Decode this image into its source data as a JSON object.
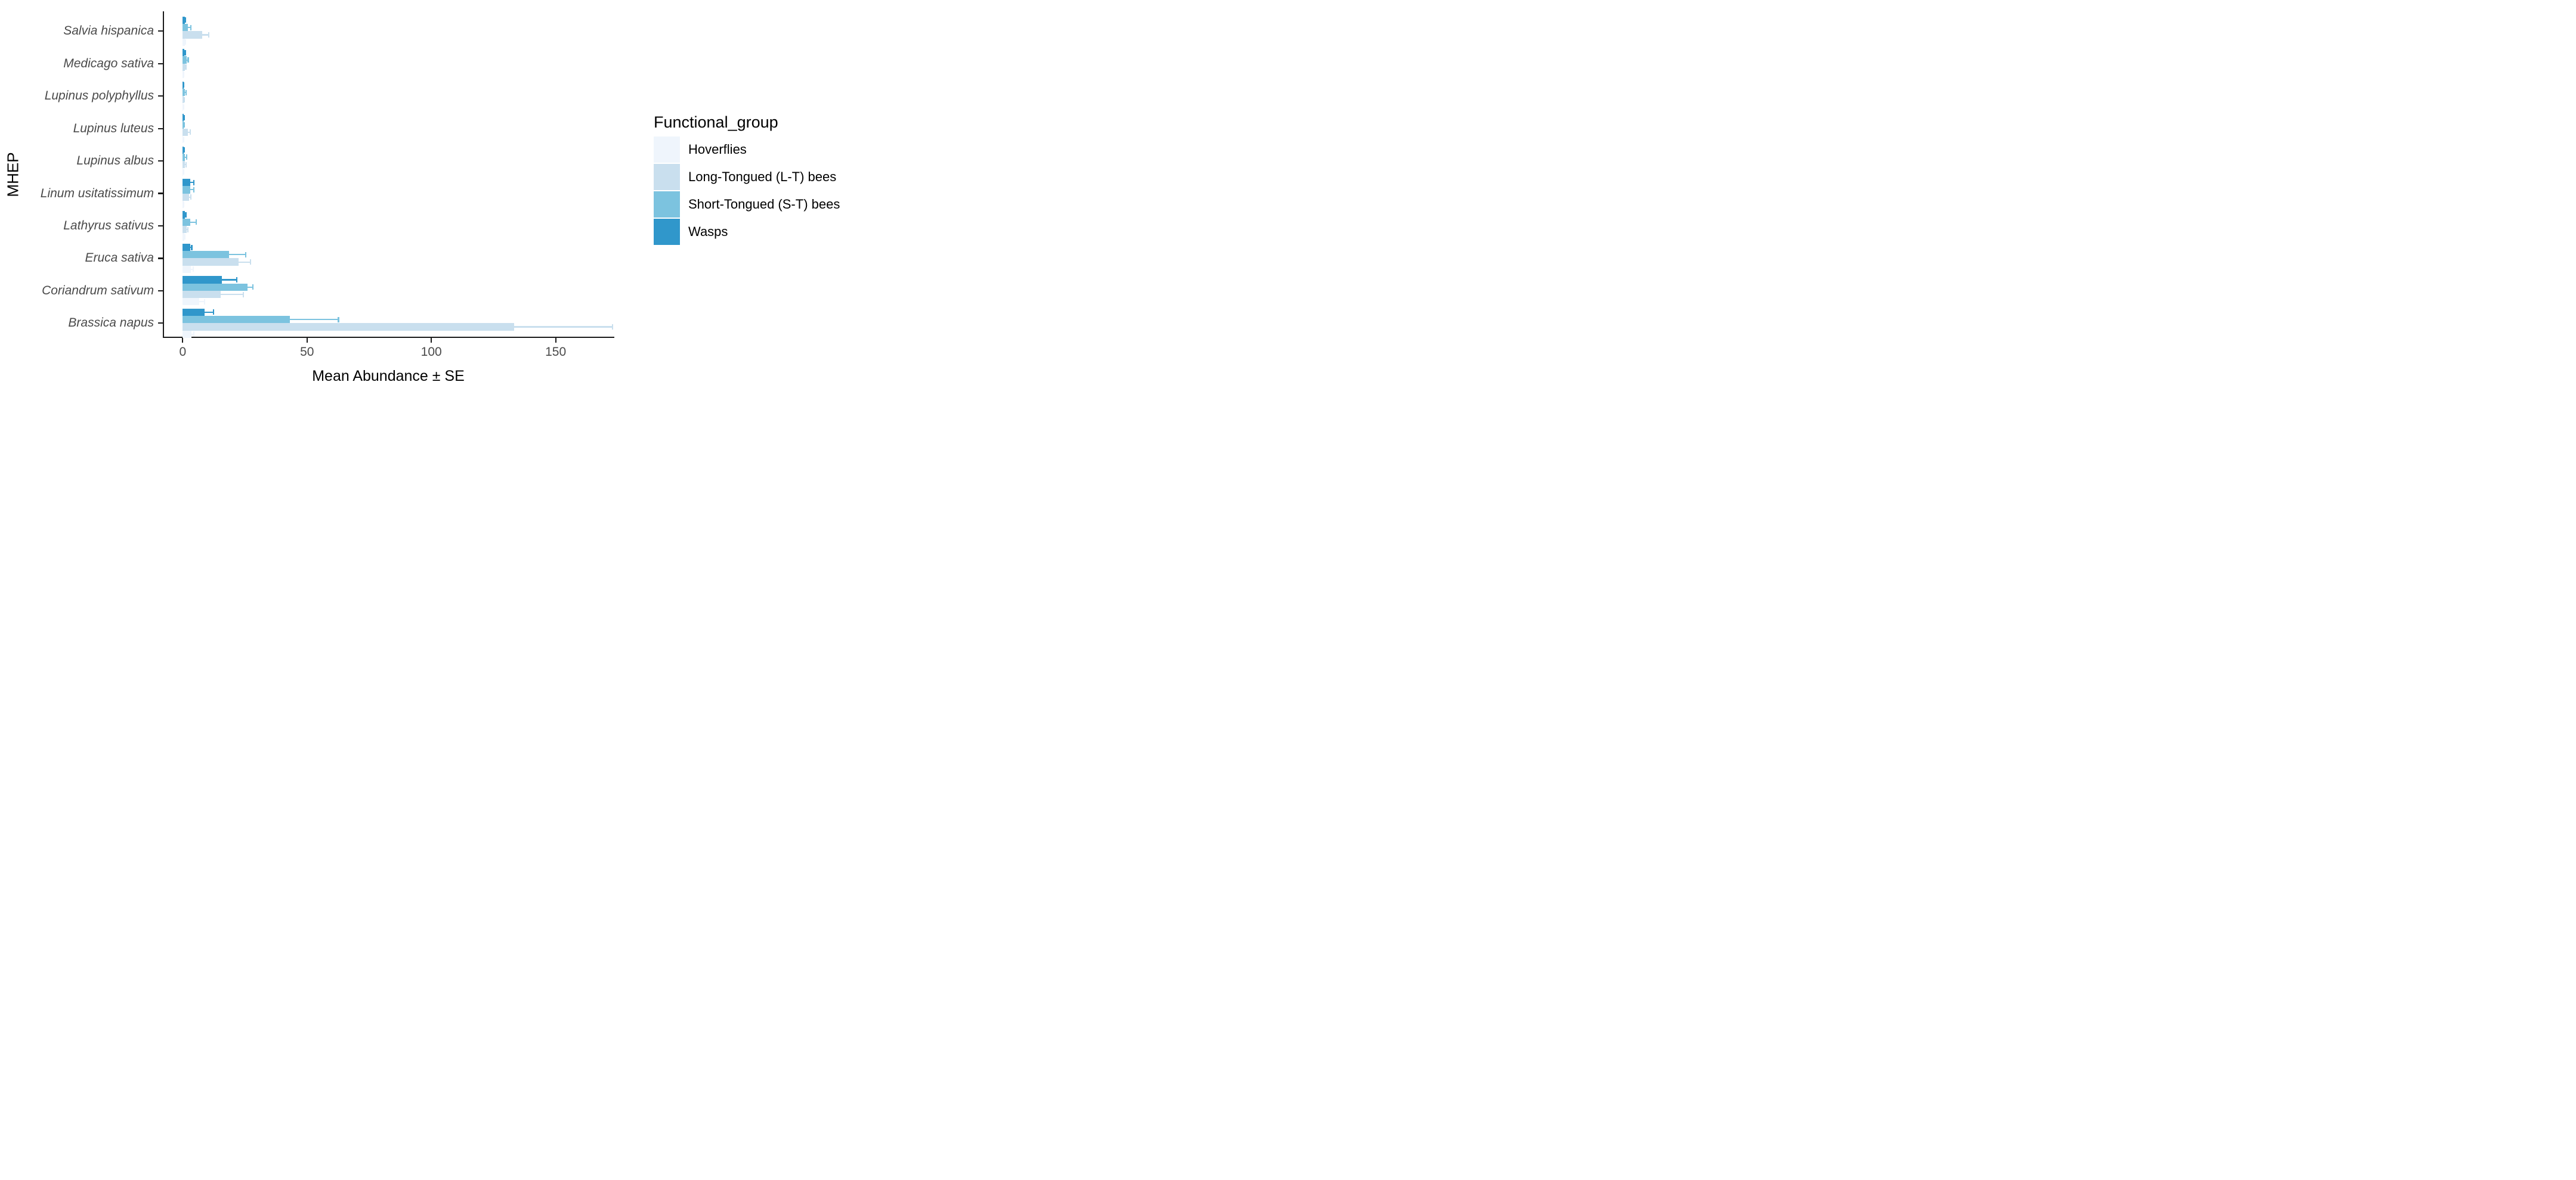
{
  "chart_data": {
    "type": "bar",
    "orientation": "horizontal",
    "title": "",
    "xlabel": "Mean Abundance ± SE",
    "ylabel": "MHEP",
    "x_ticks": [
      0,
      50,
      100,
      150
    ],
    "xlim": [
      0,
      175
    ],
    "grid": false,
    "error_bars": "upper standard error whiskers with end caps, colored same as bar fill",
    "categories_top_to_bottom": [
      "Salvia hispanica",
      "Medicago sativa",
      "Lupinus polyphyllus",
      "Lupinus luteus",
      "Lupinus albus",
      "Linum usitatissimum",
      "Lathyrus sativus",
      "Eruca sativa",
      "Coriandrum sativum",
      "Brassica napus"
    ],
    "series": [
      {
        "name": "Hoverflies",
        "color": "#EFF5FC",
        "means": [
          1.0,
          0.35,
          0.3,
          0.25,
          0.3,
          0.4,
          0.6,
          3.3,
          6.8,
          3.6
        ],
        "se": [
          0.25,
          0.1,
          0.1,
          0.1,
          0.1,
          0.1,
          0.2,
          0.9,
          2.1,
          1.0
        ]
      },
      {
        "name": "Long-Tongued (L-T) bees",
        "color": "#C9DFEE",
        "means": [
          7.9,
          0.9,
          0.5,
          2.2,
          1.0,
          2.5,
          1.7,
          22.6,
          15.3,
          133.4
        ],
        "se": [
          2.7,
          0.4,
          0.15,
          0.85,
          0.45,
          0.8,
          0.5,
          4.8,
          9.2,
          39.5
        ]
      },
      {
        "name": "Short-Tongued (S-T) bees",
        "color": "#7CC3DF",
        "means": [
          2.1,
          1.7,
          1.05,
          0.45,
          1.0,
          3.1,
          3.2,
          18.6,
          26.2,
          43.2
        ],
        "se": [
          1.2,
          0.55,
          0.3,
          0.15,
          0.65,
          1.5,
          2.2,
          6.8,
          2.1,
          19.5
        ]
      },
      {
        "name": "Wasps",
        "color": "#3097CB",
        "means": [
          0.9,
          0.8,
          0.45,
          0.45,
          0.5,
          3.2,
          1.0,
          3.1,
          15.8,
          8.8
        ],
        "se": [
          0.35,
          0.25,
          0.1,
          0.15,
          0.15,
          1.4,
          0.3,
          0.6,
          6.0,
          3.6
        ]
      }
    ],
    "bar_order_within_group_top_to_bottom": [
      "Wasps",
      "Short-Tongued (S-T) bees",
      "Long-Tongued (L-T) bees",
      "Hoverflies"
    ],
    "legend": {
      "title": "Functional_group",
      "position": "right",
      "entries": [
        "Hoverflies",
        "Long-Tongued (L-T) bees",
        "Short-Tongued (S-T) bees",
        "Wasps"
      ]
    },
    "axis_color": "#1a1a1a"
  }
}
